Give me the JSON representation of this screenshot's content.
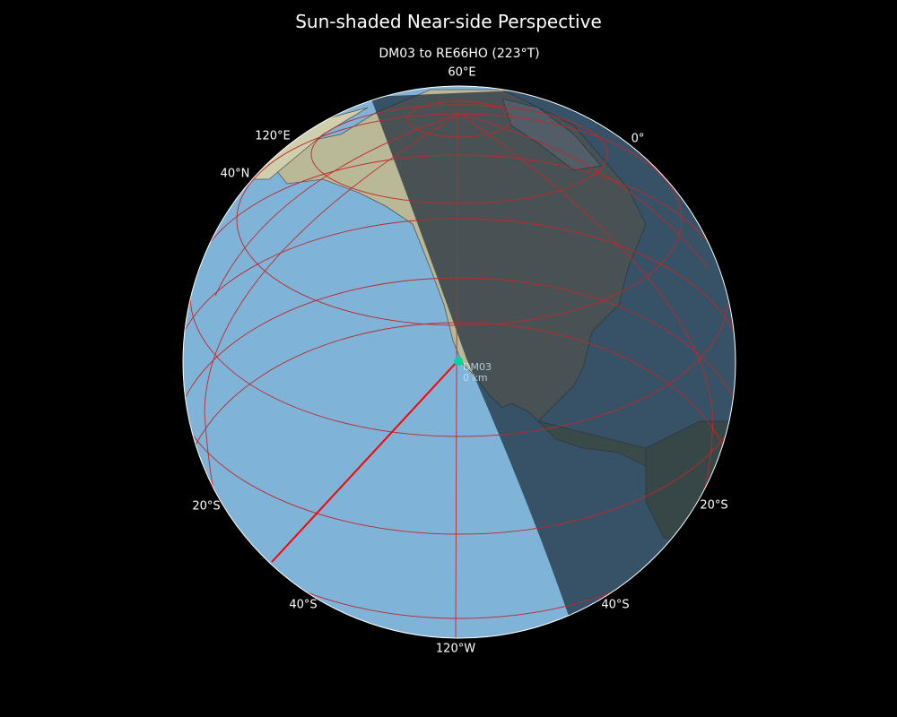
{
  "title": "Sun-shaded Near-side Perspective",
  "subtitle": "DM03 to RE66HO (223°T)",
  "grid_labels": {
    "top": "60°E",
    "top_left": "120°E",
    "top_right": "0°",
    "left_upper": "40°N",
    "left_lower": "20°S",
    "right_lower": "20°S",
    "bottom_left": "40°S",
    "bottom_right": "40°S",
    "bottom": "120°W"
  },
  "station": {
    "label": "DM03",
    "distance": "0 km",
    "color": "#00d4a0"
  },
  "path": {
    "color": "#ff0000",
    "bearing": "223°T"
  },
  "colors": {
    "ocean": "#7fb3d8",
    "night": "#1c2b3a",
    "graticule": "#c0282a",
    "land": "#c9c3a4"
  }
}
